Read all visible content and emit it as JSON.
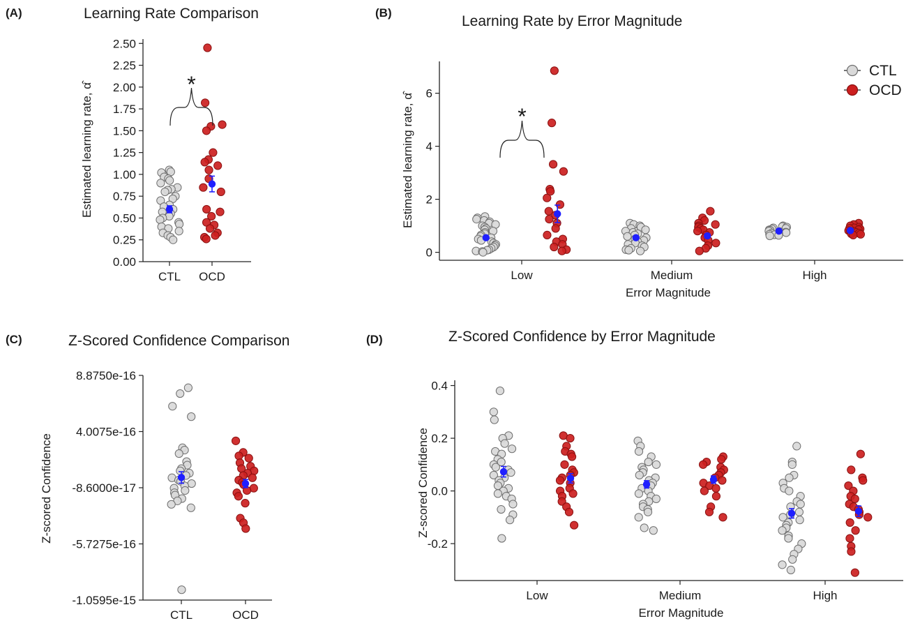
{
  "panels": {
    "A": {
      "label": "(A)",
      "title": "Learning Rate Comparison"
    },
    "B": {
      "label": "(B)",
      "title": "Learning Rate by Error Magnitude"
    },
    "C": {
      "label": "(C)",
      "title": "Z-Scored Confidence Comparison"
    },
    "D": {
      "label": "(D)",
      "title": "Z-Scored Confidence by Error Magnitude"
    }
  },
  "legend": {
    "items": [
      {
        "label": "CTL",
        "color": "#d9d9d9"
      },
      {
        "label": "OCD",
        "color": "#cc1f1f"
      }
    ],
    "position": "top-right of panel B"
  },
  "significance_marker": "*",
  "colors": {
    "ctl_fill": "#d9d9d9",
    "ctl_stroke": "#6e6e6e",
    "ocd_fill": "#cc1f1f",
    "ocd_stroke": "#8a1010",
    "mean": "#1f1fff"
  },
  "chart_data": [
    {
      "id": "A",
      "type": "scatter",
      "title": "Learning Rate Comparison",
      "xlabel": "",
      "ylabel": "Estimated learning rate, α̂",
      "categories": [
        "CTL",
        "OCD"
      ],
      "ylim": [
        0,
        2.55
      ],
      "yticks": [
        "0.00",
        "0.25",
        "0.50",
        "0.75",
        "1.00",
        "1.25",
        "1.50",
        "1.75",
        "2.00",
        "2.25",
        "2.50"
      ],
      "series": [
        {
          "name": "CTL",
          "points": [
            1.05,
            1.03,
            1.02,
            0.97,
            0.95,
            0.93,
            0.9,
            0.85,
            0.83,
            0.82,
            0.8,
            0.75,
            0.72,
            0.7,
            0.65,
            0.63,
            0.6,
            0.57,
            0.55,
            0.52,
            0.5,
            0.48,
            0.45,
            0.43,
            0.4,
            0.38,
            0.35,
            0.33,
            0.3,
            0.28,
            0.25
          ],
          "mean": 0.6,
          "se": 0.04
        },
        {
          "name": "OCD",
          "points": [
            2.45,
            1.82,
            1.57,
            1.55,
            1.5,
            1.25,
            1.17,
            1.14,
            1.1,
            1.05,
            0.95,
            0.85,
            0.8,
            0.6,
            0.57,
            0.52,
            0.45,
            0.42,
            0.38,
            0.33,
            0.3,
            0.28,
            0.26
          ],
          "mean": 0.89,
          "se": 0.09
        }
      ],
      "annotations": [
        {
          "text": "*",
          "between": [
            "CTL",
            "OCD"
          ]
        }
      ]
    },
    {
      "id": "B",
      "type": "scatter",
      "title": "Learning Rate by Error Magnitude",
      "xlabel": "Error Magnitude",
      "ylabel": "Estimated learning rate, α̂",
      "categories": [
        "Low",
        "Medium",
        "High"
      ],
      "ylim": [
        -0.3,
        7.2
      ],
      "yticks": [
        "0",
        "2",
        "4",
        "6"
      ],
      "series": [
        {
          "name": "CTL",
          "groups": [
            {
              "category": "Low",
              "points": [
                1.35,
                1.3,
                1.25,
                1.2,
                1.15,
                1.1,
                1.05,
                1.0,
                0.95,
                0.9,
                0.85,
                0.8,
                0.75,
                0.7,
                0.65,
                0.6,
                0.55,
                0.5,
                0.45,
                0.4,
                0.35,
                0.3,
                0.25,
                0.2,
                0.15,
                0.1,
                0.08,
                0.05,
                0.03,
                0.0
              ],
              "mean": 0.55,
              "se": 0.06
            },
            {
              "category": "Medium",
              "points": [
                1.1,
                1.05,
                1.0,
                0.95,
                0.9,
                0.85,
                0.8,
                0.75,
                0.7,
                0.65,
                0.6,
                0.55,
                0.5,
                0.45,
                0.4,
                0.35,
                0.3,
                0.25,
                0.2,
                0.15,
                0.1,
                0.08,
                0.05
              ],
              "mean": 0.55,
              "se": 0.05
            },
            {
              "category": "High",
              "points": [
                1.0,
                0.97,
                0.95,
                0.92,
                0.9,
                0.88,
                0.85,
                0.83,
                0.8,
                0.78,
                0.76,
                0.74,
                0.72,
                0.7,
                0.68,
                0.66,
                0.64,
                0.62
              ],
              "mean": 0.8,
              "se": 0.02
            }
          ]
        },
        {
          "name": "OCD",
          "groups": [
            {
              "category": "Low",
              "points": [
                6.85,
                4.88,
                3.32,
                3.05,
                2.38,
                2.3,
                2.05,
                1.8,
                1.55,
                1.4,
                1.25,
                1.1,
                0.9,
                0.65,
                0.5,
                0.4,
                0.3,
                0.2,
                0.1,
                0.05
              ],
              "mean": 1.45,
              "se": 0.33
            },
            {
              "category": "Medium",
              "points": [
                1.55,
                1.3,
                1.2,
                1.1,
                1.05,
                1.0,
                0.95,
                0.9,
                0.85,
                0.8,
                0.75,
                0.65,
                0.55,
                0.45,
                0.35,
                0.25,
                0.15,
                0.05
              ],
              "mean": 0.62,
              "se": 0.08
            },
            {
              "category": "High",
              "points": [
                1.1,
                1.05,
                1.0,
                0.95,
                0.92,
                0.9,
                0.88,
                0.85,
                0.82,
                0.8,
                0.78,
                0.75,
                0.72,
                0.7,
                0.68,
                0.65
              ],
              "mean": 0.82,
              "se": 0.03
            }
          ]
        }
      ],
      "annotations": [
        {
          "text": "*",
          "between": [
            "Low CTL",
            "Low OCD"
          ]
        }
      ]
    },
    {
      "id": "C",
      "type": "scatter",
      "title": "Z-Scored Confidence Comparison",
      "xlabel": "",
      "ylabel": "Z-scored Confidence",
      "categories": [
        "CTL",
        "OCD"
      ],
      "ylim": [
        -1.0595e-15,
        8.875e-16
      ],
      "yticks": [
        "-1.0595e-15",
        "-5.7275e-16",
        "-8.6000e-17",
        "4.0075e-16",
        "8.8750e-16"
      ],
      "series": [
        {
          "name": "CTL",
          "points": [
            7.8e-16,
            7.3e-16,
            6.2e-16,
            5.3e-16,
            2.6e-16,
            2.4e-16,
            2.1e-16,
            1.4e-16,
            1.1e-16,
            8e-17,
            6e-17,
            4e-17,
            2e-17,
            0,
            -2e-17,
            -3e-17,
            -5e-17,
            -7e-17,
            -9e-17,
            -1.1e-16,
            -1.3e-16,
            -1.5e-16,
            -1.8e-16,
            -2e-16,
            -2.3e-16,
            -2.6e-16,
            -9.7e-16
          ],
          "mean": 3e-18,
          "se": 5e-17
        },
        {
          "name": "OCD",
          "points": [
            3.2e-16,
            2.2e-16,
            1.9e-16,
            1.7e-16,
            1.3e-16,
            1e-16,
            8e-17,
            6e-17,
            4e-17,
            2e-17,
            0,
            -2e-17,
            -4e-17,
            -6e-17,
            -9e-17,
            -1.1e-16,
            -1.3e-16,
            -1.6e-16,
            -2.2e-16,
            -3.5e-16,
            -3.9e-16,
            -4.4e-16
          ],
          "mean": -5e-17,
          "se": 3.5e-17
        }
      ]
    },
    {
      "id": "D",
      "type": "scatter",
      "title": "Z-Scored Confidence by Error Magnitude",
      "xlabel": "Error Magnitude",
      "ylabel": "Z-scored Confidence",
      "categories": [
        "Low",
        "Medium",
        "High"
      ],
      "ylim": [
        -0.34,
        0.42
      ],
      "yticks": [
        "-0.2",
        "0.0",
        "0.2",
        "0.4"
      ],
      "series": [
        {
          "name": "CTL",
          "groups": [
            {
              "category": "Low",
              "points": [
                0.38,
                0.3,
                0.27,
                0.21,
                0.2,
                0.18,
                0.16,
                0.15,
                0.14,
                0.12,
                0.11,
                0.1,
                0.09,
                0.08,
                0.07,
                0.06,
                0.05,
                0.04,
                0.03,
                0.02,
                0.01,
                0.0,
                -0.01,
                -0.02,
                -0.03,
                -0.05,
                -0.07,
                -0.09,
                -0.11,
                -0.18
              ],
              "mean": 0.073,
              "se": 0.02
            },
            {
              "category": "Medium",
              "points": [
                0.19,
                0.17,
                0.15,
                0.13,
                0.11,
                0.1,
                0.09,
                0.08,
                0.07,
                0.06,
                0.05,
                0.04,
                0.03,
                0.02,
                0.01,
                0.0,
                -0.01,
                -0.02,
                -0.03,
                -0.04,
                -0.05,
                -0.06,
                -0.07,
                -0.08,
                -0.1,
                -0.14,
                -0.15
              ],
              "mean": 0.025,
              "se": 0.014
            },
            {
              "category": "High",
              "points": [
                0.17,
                0.11,
                0.1,
                0.06,
                0.05,
                0.03,
                0.01,
                0.0,
                -0.02,
                -0.04,
                -0.05,
                -0.06,
                -0.08,
                -0.09,
                -0.1,
                -0.11,
                -0.12,
                -0.13,
                -0.14,
                -0.15,
                -0.17,
                -0.18,
                -0.2,
                -0.22,
                -0.24,
                -0.26,
                -0.28,
                -0.3
              ],
              "mean": -0.085,
              "se": 0.018
            }
          ]
        },
        {
          "name": "OCD",
          "groups": [
            {
              "category": "Low",
              "points": [
                0.21,
                0.2,
                0.17,
                0.15,
                0.14,
                0.13,
                0.1,
                0.08,
                0.07,
                0.06,
                0.05,
                0.04,
                0.03,
                0.01,
                0.0,
                -0.01,
                -0.02,
                -0.04,
                -0.06,
                -0.08,
                -0.13
              ],
              "mean": 0.048,
              "se": 0.018
            },
            {
              "category": "Medium",
              "points": [
                0.13,
                0.12,
                0.11,
                0.1,
                0.09,
                0.08,
                0.07,
                0.06,
                0.05,
                0.04,
                0.03,
                0.02,
                0.01,
                0.0,
                -0.02,
                -0.06,
                -0.08,
                -0.1
              ],
              "mean": 0.043,
              "se": 0.014
            },
            {
              "category": "High",
              "points": [
                0.14,
                0.08,
                0.05,
                0.04,
                0.02,
                0.0,
                -0.02,
                -0.03,
                -0.05,
                -0.06,
                -0.07,
                -0.08,
                -0.09,
                -0.1,
                -0.12,
                -0.15,
                -0.18,
                -0.21,
                -0.23,
                -0.31
              ],
              "mean": -0.077,
              "se": 0.02
            }
          ]
        }
      ]
    }
  ]
}
